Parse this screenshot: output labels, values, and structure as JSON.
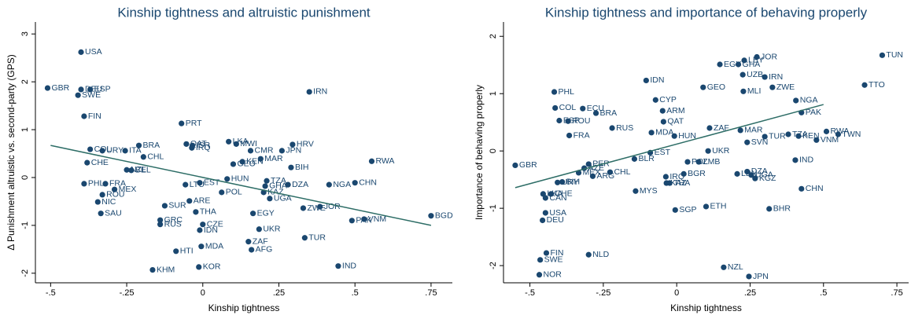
{
  "chart_data": [
    {
      "type": "scatter",
      "title": "Kinship tightness and altruistic punishment",
      "xlabel": "Kinship tightness",
      "ylabel": "Δ Punishment altruistic vs. second-party (GPS)",
      "color": "#1a476f",
      "fit_color": "#2d6d66",
      "xlim": [
        -0.55,
        0.82
      ],
      "ylim": [
        -2.2,
        3.25
      ],
      "xticks": [
        {
          "value": -0.5,
          "label": "-.5"
        },
        {
          "value": -0.25,
          "label": "-.25"
        },
        0,
        {
          "value": 0.25,
          "label": ".25"
        },
        {
          "value": 0.5,
          "label": ".5"
        },
        {
          "value": 0.75,
          "label": ".75"
        }
      ],
      "yticks": [
        -2,
        -1,
        0,
        1,
        2,
        3
      ],
      "labels": [
        "GBR",
        "USA",
        "DEU",
        "ESP",
        "SWE",
        "FIN",
        "IRN",
        "PRT",
        "COL",
        "URY",
        "ITA",
        "BRA",
        "CHL",
        "CHE",
        "NZL",
        "BEL",
        "PHL",
        "FRA",
        "MEX",
        "ROU",
        "NIC",
        "SAU",
        "SUR",
        "GRC",
        "RUS",
        "LTU",
        "EST",
        "ARE",
        "POL",
        "HUN",
        "THA",
        "CZE",
        "IDN",
        "HTI",
        "MDA",
        "KHM",
        "KOR",
        "EGY",
        "UKR",
        "ZAF",
        "AFG",
        "TZA",
        "GHA",
        "KAZ",
        "UGA",
        "DZA",
        "ZWE",
        "JOR",
        "NGA",
        "CHN",
        "PAK",
        "VNM",
        "BGD",
        "TUR",
        "IND",
        "RWA",
        "HRV",
        "JPN",
        "BIH",
        "MAR",
        "KEN",
        "GEO",
        "CMR",
        "MWI",
        "LKA",
        "QAT",
        "ISR",
        "IRQ"
      ],
      "x": [
        -0.51,
        -0.4,
        -0.4,
        -0.37,
        -0.41,
        -0.39,
        0.35,
        -0.07,
        -0.37,
        -0.33,
        -0.255,
        -0.21,
        -0.195,
        -0.38,
        -0.25,
        -0.235,
        -0.39,
        -0.32,
        -0.29,
        -0.33,
        -0.345,
        -0.335,
        -0.125,
        -0.14,
        -0.14,
        -0.057,
        -0.01,
        -0.044,
        0.062,
        0.08,
        -0.023,
        0,
        -0.01,
        -0.088,
        -0.005,
        -0.165,
        -0.013,
        0.165,
        0.185,
        0.15,
        0.16,
        0.21,
        0.205,
        0.2,
        0.22,
        0.28,
        0.33,
        0.385,
        0.415,
        0.5,
        0.49,
        0.53,
        0.75,
        0.335,
        0.445,
        0.555,
        0.295,
        0.26,
        0.29,
        0.19,
        0.13,
        0.1,
        0.157,
        0.11,
        0.085,
        -0.054,
        -0.034,
        -0.036
      ],
      "values": [
        1.87,
        2.62,
        1.84,
        1.84,
        1.72,
        1.28,
        1.79,
        1.13,
        0.59,
        0.56,
        0.56,
        0.67,
        0.43,
        0.31,
        0.16,
        0.15,
        -0.13,
        -0.13,
        -0.25,
        -0.36,
        -0.51,
        -0.75,
        -0.59,
        -0.89,
        -0.98,
        -0.15,
        -0.11,
        -0.49,
        -0.31,
        -0.03,
        -0.72,
        -0.98,
        -1.1,
        -1.54,
        -1.44,
        -1.93,
        -1.87,
        -0.75,
        -1.08,
        -1.34,
        -1.51,
        -0.07,
        -0.18,
        -0.31,
        -0.44,
        -0.15,
        -0.64,
        -0.61,
        -0.15,
        -0.11,
        -0.9,
        -0.87,
        -0.8,
        -1.26,
        -1.85,
        0.34,
        0.69,
        0.56,
        0.21,
        0.39,
        0.33,
        0.28,
        0.56,
        0.7,
        0.75,
        0.7,
        0.67,
        0.62
      ],
      "fit_line": {
        "x": [
          -0.5,
          0.75
        ],
        "values": [
          0.67,
          -1.0
        ]
      }
    },
    {
      "type": "scatter",
      "title": "Kinship tightness and importance of behaving properly",
      "xlabel": "Kinship tightness",
      "ylabel": "Importance of behaving properly",
      "color": "#1a476f",
      "fit_color": "#2d6d66",
      "xlim": [
        -0.59,
        0.79
      ],
      "ylim": [
        -2.3,
        2.25
      ],
      "xticks": [
        {
          "value": -0.5,
          "label": "-.5"
        },
        {
          "value": -0.25,
          "label": "-.25"
        },
        0,
        {
          "value": 0.25,
          "label": ".25"
        },
        {
          "value": 0.5,
          "label": ".5"
        },
        {
          "value": 0.75,
          "label": ".75"
        }
      ],
      "yticks": [
        -2,
        -1,
        0,
        1,
        2
      ],
      "labels": [
        "GBR",
        "PHL",
        "COL",
        "ECU",
        "BRA",
        "ESP",
        "ROU",
        "FRA",
        "RUS",
        "IDN",
        "CYP",
        "ARM",
        "QAT",
        "MDA",
        "HUN",
        "ZAF",
        "MAR",
        "GEO",
        "EGY",
        "GHA",
        "LBY",
        "UZB",
        "JOR",
        "IRN",
        "ZWE",
        "MLI",
        "NGA",
        "PAK",
        "TUN",
        "TTO",
        "TUR",
        "SVN",
        "TZA",
        "KEN",
        "VNM",
        "RWA",
        "TWN",
        "UKR",
        "EST",
        "BLR",
        "POL",
        "ZMB",
        "IND",
        "DZA",
        "LBN",
        "UGA",
        "KGZ",
        "CHN",
        "BHR",
        "ETH",
        "SGP",
        "NZL",
        "JPN",
        "IRQ",
        "BGR",
        "KAZ",
        "THA",
        "MYS",
        "PER",
        "AZE",
        "CHL",
        "ARG",
        "MEX",
        "URY",
        "BIH",
        "LKA",
        "CHE",
        "CAN",
        "USA",
        "DEU",
        "FIN",
        "SWE",
        "NOR",
        "NLD"
      ],
      "x": [
        -0.55,
        -0.417,
        -0.414,
        -0.32,
        -0.275,
        -0.4,
        -0.37,
        -0.366,
        -0.22,
        -0.104,
        -0.072,
        -0.048,
        -0.045,
        -0.086,
        -0.008,
        0.112,
        0.217,
        0.09,
        0.147,
        0.21,
        0.23,
        0.225,
        0.273,
        0.3,
        0.326,
        0.227,
        0.406,
        0.425,
        0.7,
        0.64,
        0.3,
        0.24,
        0.38,
        0.415,
        0.476,
        0.51,
        0.55,
        0.107,
        -0.09,
        -0.144,
        0.037,
        0.075,
        0.404,
        0.24,
        0.206,
        0.254,
        0.267,
        0.425,
        0.315,
        0.1,
        -0.005,
        0.16,
        0.246,
        -0.037,
        0.024,
        -0.035,
        -0.024,
        -0.14,
        -0.3,
        -0.315,
        -0.227,
        -0.286,
        -0.334,
        -0.406,
        -0.39,
        -0.455,
        -0.428,
        -0.447,
        -0.447,
        -0.457,
        -0.444,
        -0.465,
        -0.468,
        -0.3
      ],
      "values": [
        -0.25,
        1.03,
        0.75,
        0.74,
        0.66,
        0.53,
        0.52,
        0.27,
        0.4,
        1.23,
        0.89,
        0.7,
        0.51,
        0.32,
        0.26,
        0.4,
        0.36,
        1.11,
        1.51,
        1.51,
        1.58,
        1.33,
        1.64,
        1.29,
        1.11,
        1.04,
        0.88,
        0.67,
        1.67,
        1.15,
        0.25,
        0.15,
        0.29,
        0.26,
        0.19,
        0.34,
        0.29,
        0.0,
        -0.03,
        -0.14,
        -0.19,
        -0.19,
        -0.16,
        -0.36,
        -0.4,
        -0.42,
        -0.48,
        -0.66,
        -1.01,
        -0.97,
        -1.03,
        -2.03,
        -2.19,
        -0.45,
        -0.4,
        -0.56,
        -0.56,
        -0.7,
        -0.23,
        -0.3,
        -0.37,
        -0.44,
        -0.38,
        -0.55,
        -0.54,
        -0.75,
        -0.75,
        -0.82,
        -1.08,
        -1.21,
        -1.78,
        -1.9,
        -2.16,
        -1.81
      ],
      "fit_line": {
        "x": [
          -0.55,
          0.5
        ],
        "values": [
          -0.64,
          0.81
        ]
      }
    }
  ]
}
